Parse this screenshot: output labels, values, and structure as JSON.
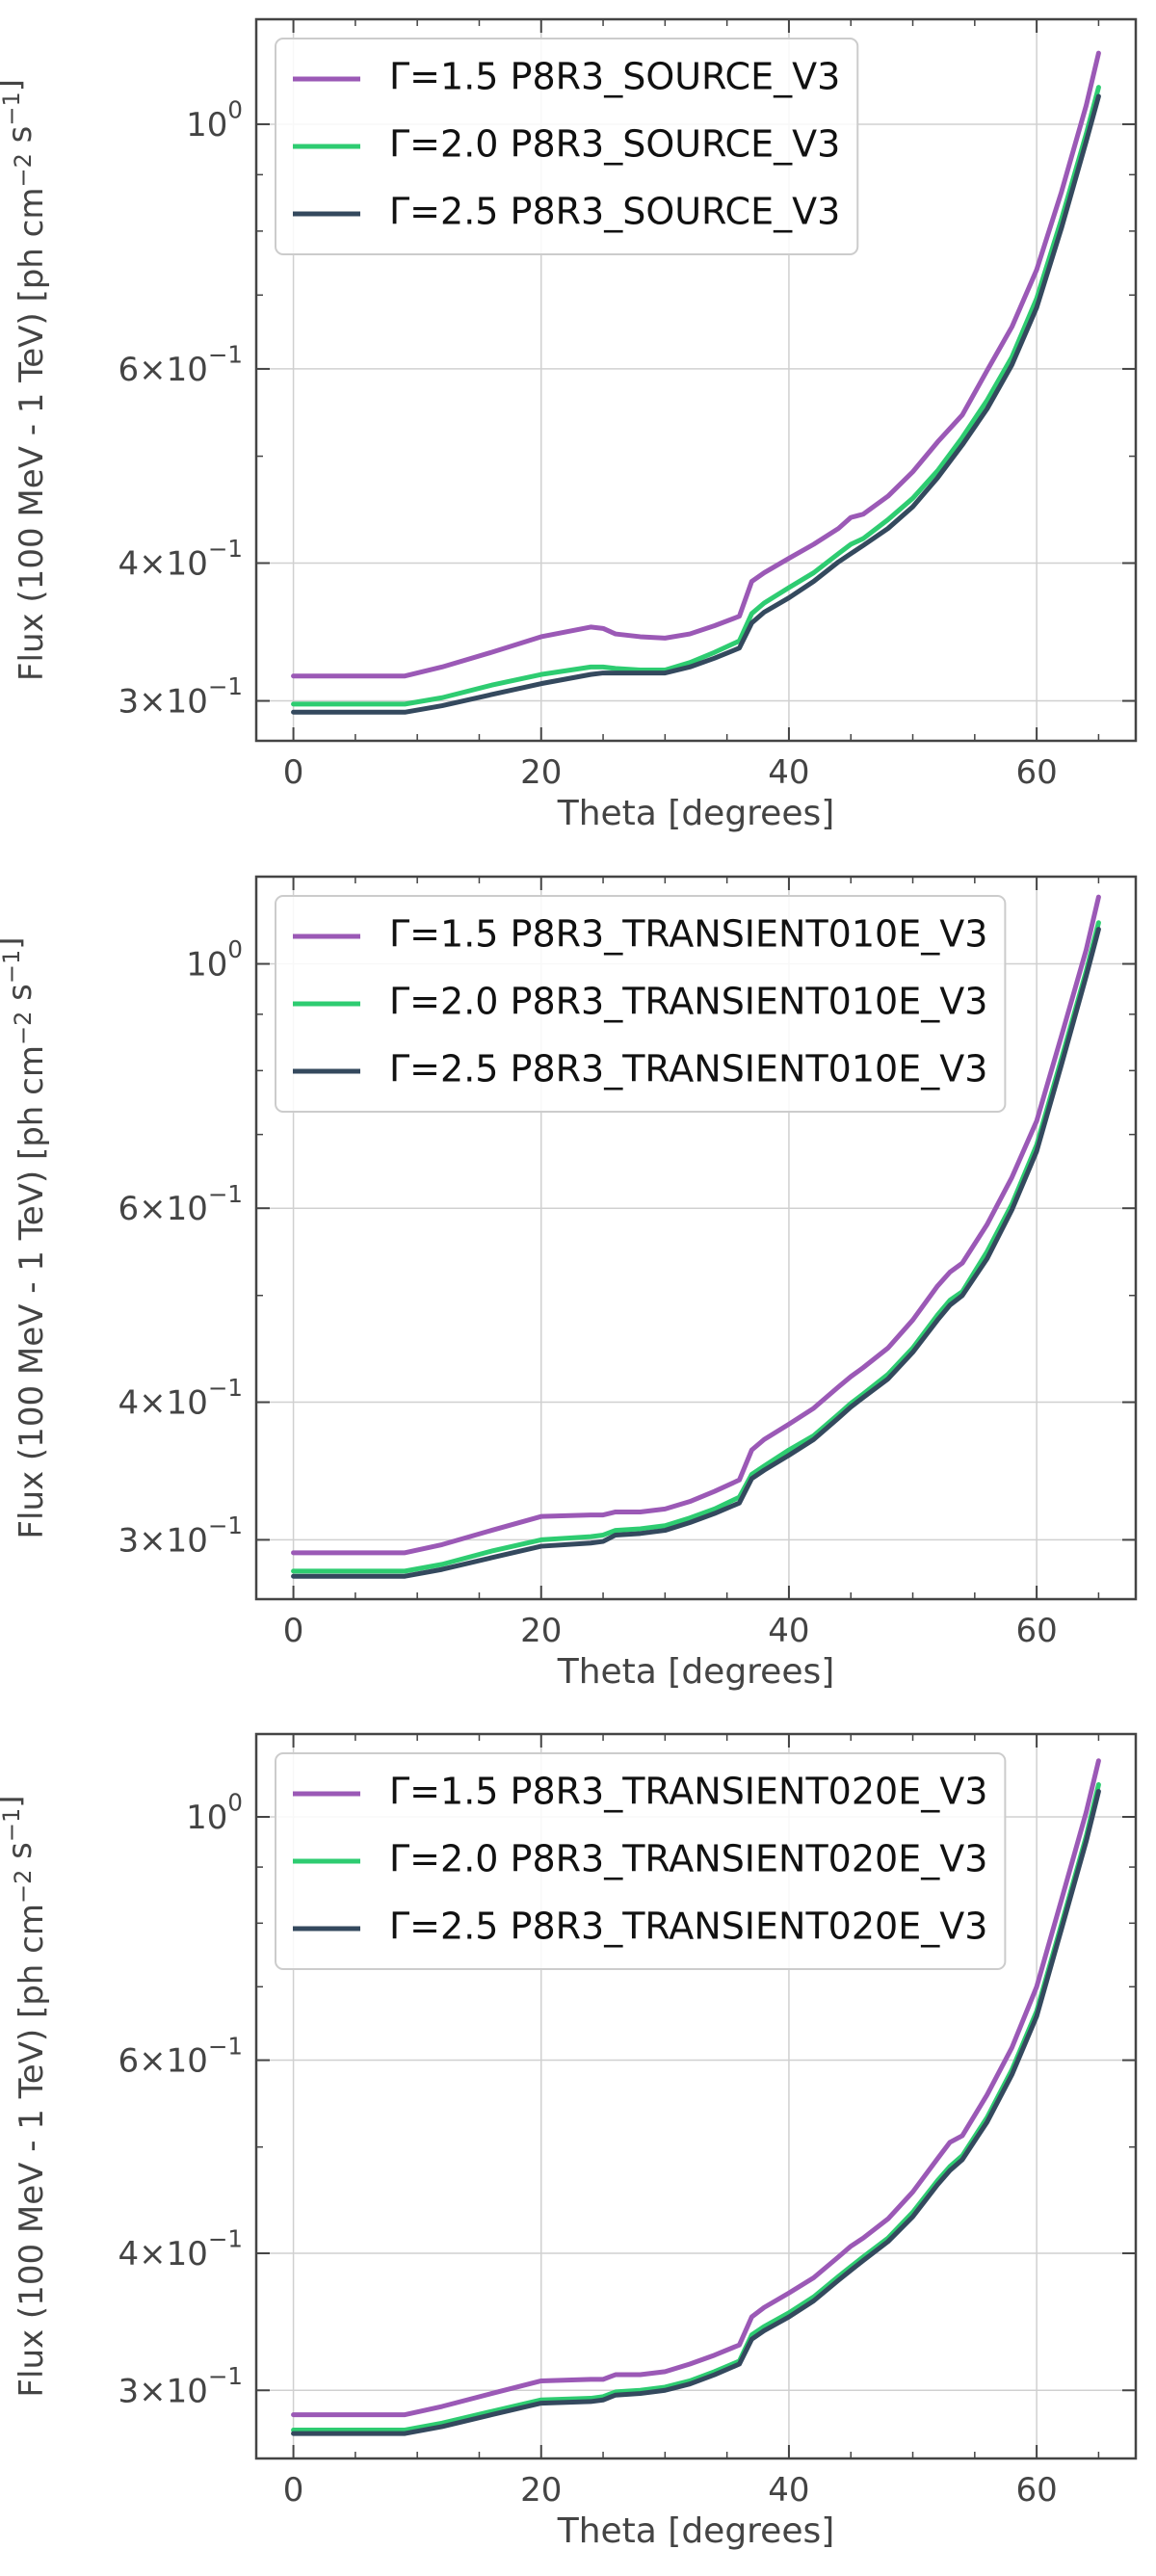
{
  "chart_data": [
    {
      "type": "line",
      "ylabel": "Flux (100 MeV - 1 TeV) [ph cm⁻² s⁻¹]",
      "xlabel": "Theta [degrees]",
      "x_scale": "linear",
      "y_scale": "log",
      "xlim": [
        -3,
        68
      ],
      "ylim": [
        0.276,
        1.245
      ],
      "xticks": [
        0,
        20,
        40,
        60
      ],
      "xtick_labels": [
        "0",
        "20",
        "40",
        "60"
      ],
      "yticks": [
        0.3,
        0.4,
        0.6,
        1.0
      ],
      "ytick_labels": [
        "3×10⁻¹",
        "4×10⁻¹",
        "6×10⁻¹",
        "10⁰"
      ],
      "grid": true,
      "legend_position": "top-left",
      "x": [
        0,
        5,
        9,
        12,
        16,
        20,
        24,
        25,
        26,
        28,
        30,
        32,
        34,
        36,
        37,
        38,
        40,
        42,
        44,
        45,
        46,
        48,
        50,
        52,
        54,
        56,
        58,
        60,
        62,
        64,
        65
      ],
      "series": [
        {
          "name": "Γ=1.5 P8R3_SOURCE_V3",
          "color": "#9b59b6",
          "values": [
            0.316,
            0.316,
            0.316,
            0.322,
            0.332,
            0.343,
            0.35,
            0.349,
            0.345,
            0.343,
            0.342,
            0.345,
            0.351,
            0.358,
            0.385,
            0.392,
            0.404,
            0.416,
            0.43,
            0.44,
            0.443,
            0.46,
            0.484,
            0.515,
            0.545,
            0.598,
            0.655,
            0.738,
            0.868,
            1.04,
            1.16
          ]
        },
        {
          "name": "Γ=2.0 P8R3_SOURCE_V3",
          "color": "#2ecc71",
          "values": [
            0.298,
            0.298,
            0.298,
            0.302,
            0.31,
            0.317,
            0.322,
            0.322,
            0.321,
            0.32,
            0.32,
            0.325,
            0.332,
            0.34,
            0.36,
            0.368,
            0.38,
            0.392,
            0.408,
            0.416,
            0.421,
            0.438,
            0.458,
            0.485,
            0.52,
            0.562,
            0.615,
            0.695,
            0.82,
            0.98,
            1.08
          ]
        },
        {
          "name": "Γ=2.5 P8R3_SOURCE_V3",
          "color": "#34495e",
          "values": [
            0.293,
            0.293,
            0.293,
            0.297,
            0.304,
            0.311,
            0.317,
            0.318,
            0.318,
            0.318,
            0.318,
            0.322,
            0.328,
            0.335,
            0.353,
            0.361,
            0.372,
            0.385,
            0.401,
            0.408,
            0.415,
            0.43,
            0.45,
            0.478,
            0.512,
            0.552,
            0.605,
            0.682,
            0.805,
            0.965,
            1.06
          ]
        }
      ]
    },
    {
      "type": "line",
      "ylabel": "Flux (100 MeV - 1 TeV) [ph cm⁻² s⁻¹]",
      "xlabel": "Theta [degrees]",
      "x_scale": "linear",
      "y_scale": "log",
      "xlim": [
        -3,
        68
      ],
      "ylim": [
        0.265,
        1.2
      ],
      "xticks": [
        0,
        20,
        40,
        60
      ],
      "xtick_labels": [
        "0",
        "20",
        "40",
        "60"
      ],
      "yticks": [
        0.3,
        0.4,
        0.6,
        1.0
      ],
      "ytick_labels": [
        "3×10⁻¹",
        "4×10⁻¹",
        "6×10⁻¹",
        "10⁰"
      ],
      "grid": true,
      "legend_position": "top-left",
      "x": [
        0,
        5,
        9,
        12,
        16,
        20,
        24,
        25,
        26,
        28,
        30,
        32,
        34,
        36,
        37,
        38,
        40,
        42,
        44,
        45,
        46,
        48,
        50,
        52,
        53,
        54,
        56,
        58,
        60,
        62,
        64,
        65
      ],
      "series": [
        {
          "name": "Γ=1.5 P8R3_TRANSIENT010E_V3",
          "color": "#9b59b6",
          "values": [
            0.292,
            0.292,
            0.292,
            0.297,
            0.306,
            0.315,
            0.316,
            0.316,
            0.318,
            0.318,
            0.32,
            0.325,
            0.332,
            0.34,
            0.362,
            0.37,
            0.382,
            0.395,
            0.413,
            0.422,
            0.43,
            0.448,
            0.475,
            0.51,
            0.525,
            0.535,
            0.58,
            0.64,
            0.72,
            0.86,
            1.03,
            1.15
          ]
        },
        {
          "name": "Γ=2.0 P8R3_TRANSIENT010E_V3",
          "color": "#2ecc71",
          "values": [
            0.281,
            0.281,
            0.281,
            0.285,
            0.293,
            0.3,
            0.302,
            0.303,
            0.306,
            0.307,
            0.309,
            0.314,
            0.32,
            0.328,
            0.344,
            0.35,
            0.362,
            0.373,
            0.39,
            0.399,
            0.407,
            0.424,
            0.448,
            0.48,
            0.495,
            0.504,
            0.548,
            0.605,
            0.685,
            0.82,
            0.985,
            1.09
          ]
        },
        {
          "name": "Γ=2.5 P8R3_TRANSIENT010E_V3",
          "color": "#34495e",
          "values": [
            0.278,
            0.278,
            0.278,
            0.282,
            0.289,
            0.296,
            0.298,
            0.299,
            0.303,
            0.304,
            0.306,
            0.311,
            0.317,
            0.324,
            0.341,
            0.347,
            0.358,
            0.37,
            0.387,
            0.396,
            0.404,
            0.42,
            0.444,
            0.475,
            0.49,
            0.5,
            0.54,
            0.598,
            0.676,
            0.81,
            0.975,
            1.075
          ]
        }
      ]
    },
    {
      "type": "line",
      "ylabel": "Flux (100 MeV - 1 TeV) [ph cm⁻² s⁻¹]",
      "xlabel": "Theta [degrees]",
      "x_scale": "linear",
      "y_scale": "log",
      "xlim": [
        -3,
        68
      ],
      "ylim": [
        0.26,
        1.19
      ],
      "xticks": [
        0,
        20,
        40,
        60
      ],
      "xtick_labels": [
        "0",
        "20",
        "40",
        "60"
      ],
      "yticks": [
        0.3,
        0.4,
        0.6,
        1.0
      ],
      "ytick_labels": [
        "3×10⁻¹",
        "4×10⁻¹",
        "6×10⁻¹",
        "10⁰"
      ],
      "grid": true,
      "legend_position": "top-left",
      "x": [
        0,
        5,
        9,
        12,
        16,
        20,
        24,
        25,
        26,
        28,
        30,
        32,
        34,
        36,
        37,
        38,
        40,
        42,
        44,
        45,
        46,
        48,
        50,
        52,
        53,
        54,
        56,
        58,
        60,
        62,
        64,
        65
      ],
      "series": [
        {
          "name": "Γ=1.5 P8R3_TRANSIENT020E_V3",
          "color": "#9b59b6",
          "values": [
            0.285,
            0.285,
            0.285,
            0.29,
            0.298,
            0.306,
            0.307,
            0.307,
            0.31,
            0.31,
            0.312,
            0.317,
            0.323,
            0.33,
            0.35,
            0.357,
            0.368,
            0.38,
            0.397,
            0.406,
            0.413,
            0.43,
            0.455,
            0.488,
            0.505,
            0.512,
            0.558,
            0.616,
            0.7,
            0.84,
            1.01,
            1.125
          ]
        },
        {
          "name": "Γ=2.0 P8R3_TRANSIENT020E_V3",
          "color": "#2ecc71",
          "values": [
            0.276,
            0.276,
            0.276,
            0.28,
            0.287,
            0.294,
            0.295,
            0.296,
            0.299,
            0.3,
            0.302,
            0.306,
            0.312,
            0.319,
            0.337,
            0.343,
            0.353,
            0.365,
            0.381,
            0.389,
            0.397,
            0.413,
            0.436,
            0.466,
            0.48,
            0.491,
            0.532,
            0.588,
            0.665,
            0.798,
            0.96,
            1.07
          ]
        },
        {
          "name": "Γ=2.5 P8R3_TRANSIENT020E_V3",
          "color": "#34495e",
          "values": [
            0.274,
            0.274,
            0.274,
            0.278,
            0.285,
            0.292,
            0.293,
            0.294,
            0.297,
            0.298,
            0.3,
            0.304,
            0.31,
            0.317,
            0.334,
            0.34,
            0.35,
            0.362,
            0.378,
            0.386,
            0.394,
            0.41,
            0.432,
            0.462,
            0.476,
            0.487,
            0.527,
            0.582,
            0.658,
            0.79,
            0.95,
            1.055
          ]
        }
      ]
    }
  ]
}
